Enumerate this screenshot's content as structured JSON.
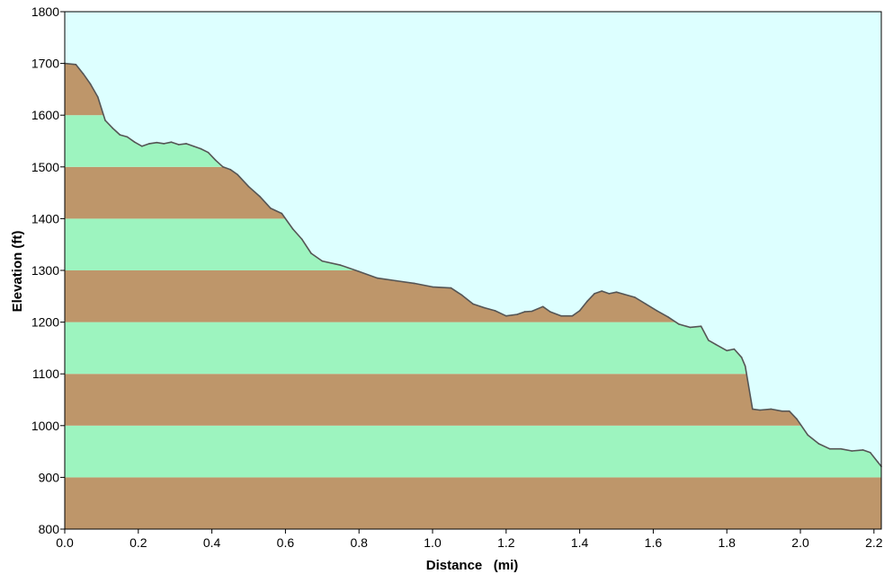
{
  "chart_data": {
    "type": "area",
    "title": "",
    "xlabel": "Distance   (mi)",
    "ylabel": "Elevation (ft)",
    "xlim": [
      0,
      2.22
    ],
    "ylim": [
      800,
      1800
    ],
    "x_ticks": [
      "0.0",
      "0.2",
      "0.4",
      "0.6",
      "0.8",
      "1.0",
      "1.2",
      "1.4",
      "1.6",
      "1.8",
      "2.0",
      "2.2"
    ],
    "y_ticks": [
      "800",
      "900",
      "1000",
      "1100",
      "1200",
      "1300",
      "1400",
      "1500",
      "1600",
      "1700",
      "1800"
    ],
    "grid": false,
    "colors": {
      "background": "#ffffff",
      "sky": "#ddffff",
      "band_brown": "#be966a",
      "band_green": "#9df4bf",
      "profile_line": "#555555",
      "frame": "#000000"
    },
    "series": [
      {
        "x": [
          0.0,
          0.03,
          0.05,
          0.07,
          0.09,
          0.11,
          0.13,
          0.15,
          0.17,
          0.19,
          0.21,
          0.23,
          0.25,
          0.27,
          0.29,
          0.31,
          0.33,
          0.35,
          0.37,
          0.39,
          0.41,
          0.43,
          0.45,
          0.47,
          0.5,
          0.53,
          0.56,
          0.59,
          0.62,
          0.645,
          0.67,
          0.7,
          0.75,
          0.8,
          0.85,
          0.9,
          0.95,
          1.0,
          1.05,
          1.08,
          1.11,
          1.14,
          1.17,
          1.2,
          1.23,
          1.25,
          1.27,
          1.3,
          1.32,
          1.35,
          1.38,
          1.4,
          1.42,
          1.44,
          1.46,
          1.48,
          1.5,
          1.52,
          1.55,
          1.58,
          1.61,
          1.64,
          1.67,
          1.7,
          1.73,
          1.75,
          1.77,
          1.8,
          1.82,
          1.84,
          1.85,
          1.87,
          1.89,
          1.92,
          1.95,
          1.97,
          1.99,
          2.02,
          2.05,
          2.08,
          2.11,
          2.14,
          2.17,
          2.19,
          2.21,
          2.22
        ],
        "y": [
          1700,
          1698,
          1680,
          1660,
          1635,
          1590,
          1575,
          1562,
          1558,
          1548,
          1540,
          1545,
          1547,
          1545,
          1548,
          1543,
          1545,
          1540,
          1535,
          1528,
          1513,
          1500,
          1495,
          1485,
          1462,
          1443,
          1420,
          1410,
          1380,
          1360,
          1333,
          1318,
          1310,
          1298,
          1285,
          1280,
          1275,
          1268,
          1266,
          1252,
          1235,
          1228,
          1222,
          1212,
          1215,
          1220,
          1221,
          1230,
          1220,
          1212,
          1212,
          1222,
          1240,
          1255,
          1260,
          1255,
          1258,
          1254,
          1248,
          1235,
          1222,
          1210,
          1196,
          1190,
          1192,
          1165,
          1157,
          1145,
          1148,
          1132,
          1115,
          1032,
          1030,
          1032,
          1028,
          1028,
          1013,
          982,
          965,
          955,
          955,
          951,
          953,
          948,
          930,
          921
        ]
      }
    ]
  }
}
